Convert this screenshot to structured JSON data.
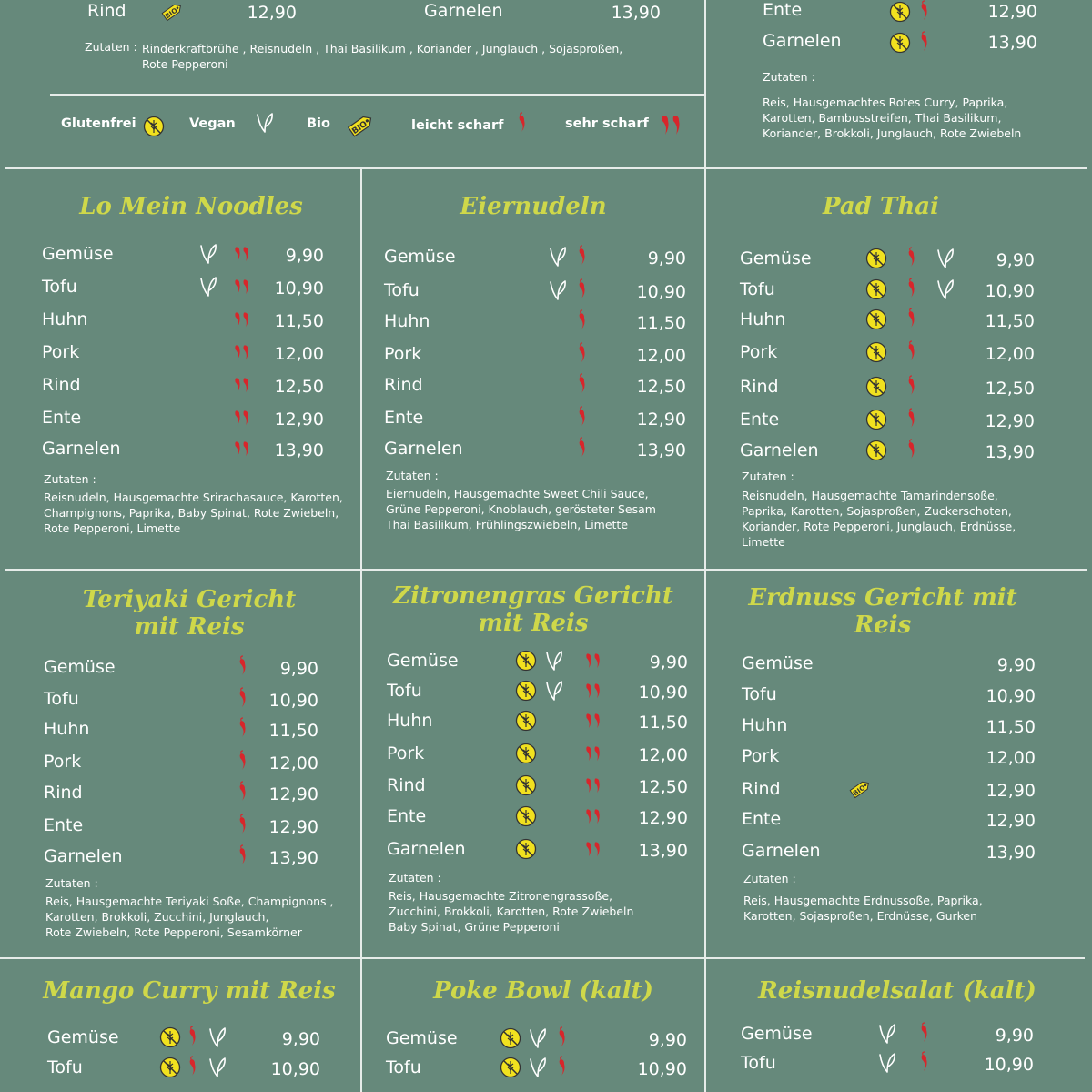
{
  "legend": {
    "glutenfree": "Glutenfrei",
    "vegan": "Vegan",
    "bio": "Bio",
    "mild": "leicht scharf",
    "hot": "sehr scharf"
  },
  "icons": {
    "glutenfree": "gluten-free-icon",
    "vegan": "vegan-leaf-icon",
    "bio": "bio-tag-icon",
    "mild": "chili-icon",
    "hot": "double-chili-icon"
  },
  "colors": {
    "background": "#66897b",
    "title": "#cfd84a",
    "chili": "#d7262b",
    "badge": "#f1e11f",
    "divider": "#e6ece9"
  },
  "top_left": {
    "rows": [
      {
        "name": "Rind",
        "price": "12,90"
      },
      {
        "name": "Garnelen",
        "price": "13,90"
      }
    ],
    "zutaten_label": "Zutaten :",
    "ingredients": "Rinderkraftbrühe , Reisnudeln , Thai Basilikum , Koriander , Junglauch , Sojasproßen,\nRote Pepperoni"
  },
  "top_right": {
    "rows": [
      {
        "name": "Ente",
        "price": "12,90"
      },
      {
        "name": "Garnelen",
        "price": "13,90"
      }
    ],
    "zutaten_label": "Zutaten :",
    "ingredients": "Reis, Hausgemachtes Rotes Curry, Paprika,\nKarotten, Bambusstreifen, Thai Basilikum,\nKoriander, Brokkoli, Junglauch, Rote Zwiebeln"
  },
  "sections": [
    {
      "title": "Lo Mein Noodles",
      "rows": [
        {
          "name": "Gemüse",
          "price": "9,90"
        },
        {
          "name": "Tofu",
          "price": "10,90"
        },
        {
          "name": "Huhn",
          "price": "11,50"
        },
        {
          "name": "Pork",
          "price": "12,00"
        },
        {
          "name": "Rind",
          "price": "12,50"
        },
        {
          "name": "Ente",
          "price": "12,90"
        },
        {
          "name": "Garnelen",
          "price": "13,90"
        }
      ],
      "zutaten_label": "Zutaten :",
      "ingredients": "Reisnudeln, Hausgemachte Srirachasauce, Karotten,\nChampignons, Paprika, Baby Spinat, Rote Zwiebeln,\nRote Pepperoni, Limette"
    },
    {
      "title": "Eiernudeln",
      "rows": [
        {
          "name": "Gemüse",
          "price": "9,90"
        },
        {
          "name": "Tofu",
          "price": "10,90"
        },
        {
          "name": "Huhn",
          "price": "11,50"
        },
        {
          "name": "Pork",
          "price": "12,00"
        },
        {
          "name": "Rind",
          "price": "12,50"
        },
        {
          "name": "Ente",
          "price": "12,90"
        },
        {
          "name": "Garnelen",
          "price": "13,90"
        }
      ],
      "zutaten_label": "Zutaten :",
      "ingredients": "Eiernudeln, Hausgemachte Sweet Chili Sauce,\nGrüne Pepperoni, Knoblauch, gerösteter Sesam\nThai Basilikum, Frühlingszwiebeln, Limette"
    },
    {
      "title": "Pad Thai",
      "rows": [
        {
          "name": "Gemüse",
          "price": "9,90"
        },
        {
          "name": "Tofu",
          "price": "10,90"
        },
        {
          "name": "Huhn",
          "price": "11,50"
        },
        {
          "name": "Pork",
          "price": "12,00"
        },
        {
          "name": "Rind",
          "price": "12,50"
        },
        {
          "name": "Ente",
          "price": "12,90"
        },
        {
          "name": "Garnelen",
          "price": "13,90"
        }
      ],
      "zutaten_label": "Zutaten :",
      "ingredients": "Reisnudeln, Hausgemachte Tamarindensoße,\nPaprika, Karotten, Sojasproßen, Zuckerschoten,\nKoriander, Rote Pepperoni, Junglauch,  Erdnüsse,\nLimette"
    },
    {
      "title": "Teriyaki Gericht\nmit Reis",
      "rows": [
        {
          "name": "Gemüse",
          "price": "9,90"
        },
        {
          "name": "Tofu",
          "price": "10,90"
        },
        {
          "name": "Huhn",
          "price": "11,50"
        },
        {
          "name": "Pork",
          "price": "12,00"
        },
        {
          "name": "Rind",
          "price": "12,90"
        },
        {
          "name": "Ente",
          "price": "12,90"
        },
        {
          "name": "Garnelen",
          "price": "13,90"
        }
      ],
      "zutaten_label": "Zutaten :",
      "ingredients": "Reis, Hausgemachte Teriyaki Soße, Champignons ,\nKarotten,  Brokkoli, Zucchini, Junglauch,\nRote Zwiebeln, Rote Pepperoni, Sesamkörner"
    },
    {
      "title": "Zitronengras Gericht\nmit Reis",
      "rows": [
        {
          "name": "Gemüse",
          "price": "9,90"
        },
        {
          "name": "Tofu",
          "price": "10,90"
        },
        {
          "name": "Huhn",
          "price": "11,50"
        },
        {
          "name": "Pork",
          "price": "12,00"
        },
        {
          "name": "Rind",
          "price": "12,50"
        },
        {
          "name": "Ente",
          "price": "12,90"
        },
        {
          "name": "Garnelen",
          "price": "13,90"
        }
      ],
      "zutaten_label": "Zutaten :",
      "ingredients": "Reis, Hausgemachte Zitronengrassoße,\nZucchini, Brokkoli, Karotten, Rote Zwiebeln\nBaby Spinat, Grüne Pepperoni"
    },
    {
      "title": "Erdnuss Gericht mit\nReis",
      "rows": [
        {
          "name": "Gemüse",
          "price": "9,90"
        },
        {
          "name": "Tofu",
          "price": "10,90"
        },
        {
          "name": "Huhn",
          "price": "11,50"
        },
        {
          "name": "Pork",
          "price": "12,00"
        },
        {
          "name": "Rind",
          "price": "12,90"
        },
        {
          "name": "Ente",
          "price": "12,90"
        },
        {
          "name": "Garnelen",
          "price": "13,90"
        }
      ],
      "zutaten_label": "Zutaten :",
      "ingredients": "Reis, Hausgemachte Erdnussoße, Paprika,\nKarotten, Sojasproßen, Erdnüsse, Gurken"
    },
    {
      "title": "Mango Curry mit Reis",
      "rows": [
        {
          "name": "Gemüse",
          "price": "9,90"
        },
        {
          "name": "Tofu",
          "price": "10,90"
        }
      ]
    },
    {
      "title": "Poke Bowl (kalt)",
      "rows": [
        {
          "name": "Gemüse",
          "price": "9,90"
        },
        {
          "name": "Tofu",
          "price": "10,90"
        }
      ]
    },
    {
      "title": "Reisnudelsalat (kalt)",
      "rows": [
        {
          "name": "Gemüse",
          "price": "9,90"
        },
        {
          "name": "Tofu",
          "price": "10,90"
        }
      ]
    }
  ]
}
